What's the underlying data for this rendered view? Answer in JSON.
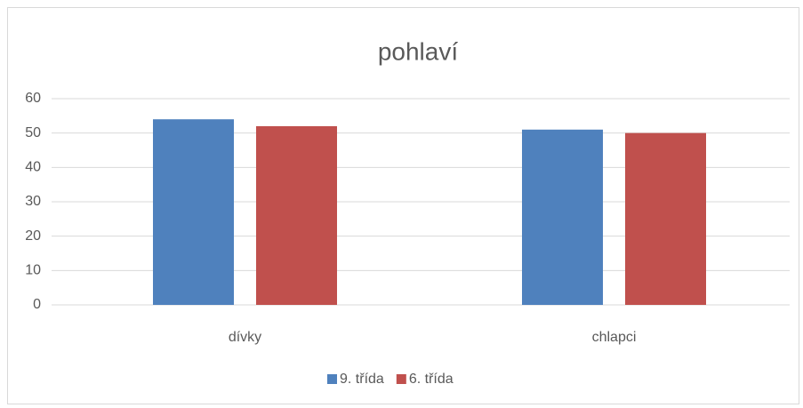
{
  "chart_data": {
    "type": "bar",
    "title": "pohlaví",
    "categories": [
      "dívky",
      "chlapci"
    ],
    "series": [
      {
        "name": "9. třída",
        "color": "#4f81bd",
        "values": [
          54,
          51
        ]
      },
      {
        "name": "6. třída",
        "color": "#c0504d",
        "values": [
          52,
          50
        ]
      }
    ],
    "ylim": [
      0,
      60
    ],
    "yticks": [
      0,
      10,
      20,
      30,
      40,
      50,
      60
    ],
    "grid": true,
    "legend": "bottom"
  }
}
